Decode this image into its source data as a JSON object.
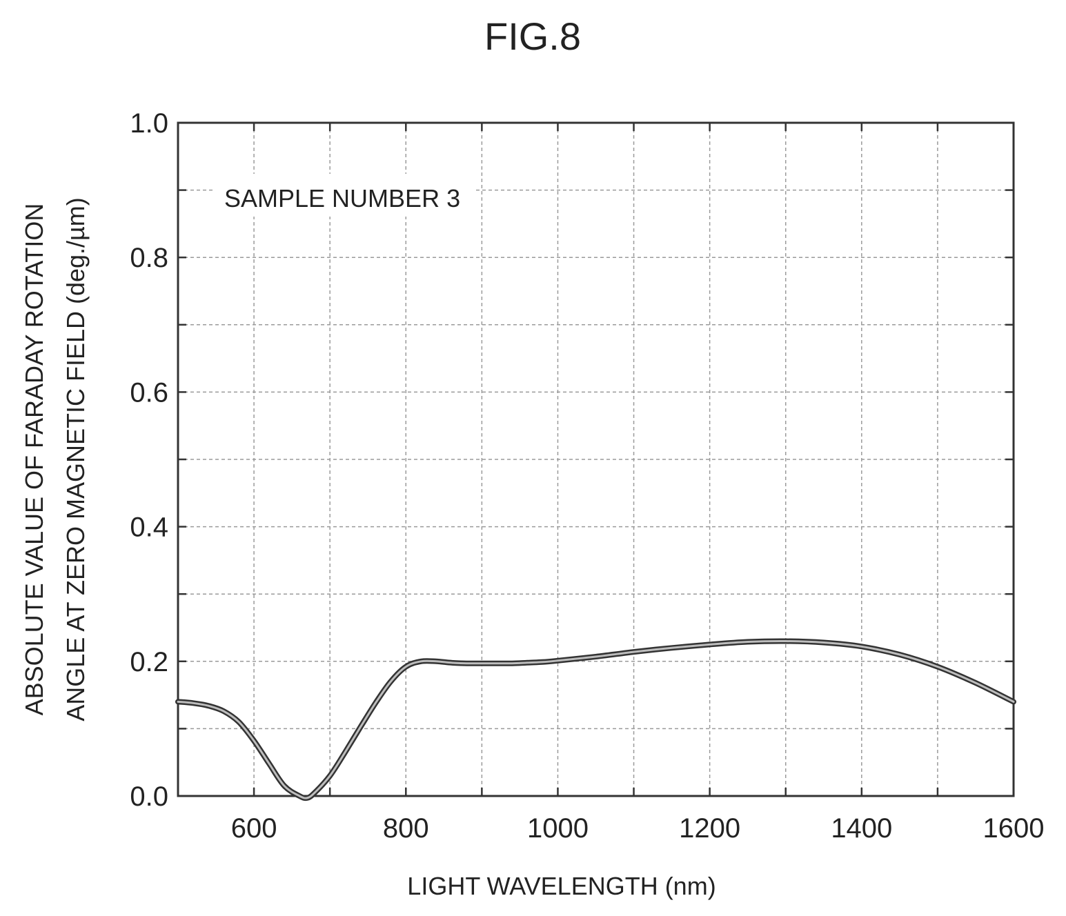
{
  "chart_data": {
    "type": "line",
    "title": "FIG.8",
    "xlabel": "LIGHT WAVELENGTH (nm)",
    "ylabel_lines": [
      "ABSOLUTE VALUE OF FARADAY ROTATION",
      "ANGLE AT ZERO MAGNETIC FIELD (deg./µm)"
    ],
    "annotation": "SAMPLE NUMBER 3",
    "xlim": [
      500,
      1600
    ],
    "ylim": [
      0.0,
      1.0
    ],
    "x_ticks": [
      600,
      800,
      1000,
      1200,
      1400,
      1600
    ],
    "x_tick_labels": [
      "600",
      "800",
      "1000",
      "1200",
      "1400",
      "1600"
    ],
    "x_minor_grid": [
      700,
      900,
      1100,
      1300,
      1500
    ],
    "y_ticks": [
      0.0,
      0.2,
      0.4,
      0.6,
      0.8,
      1.0
    ],
    "y_tick_labels": [
      "0.0",
      "0.2",
      "0.4",
      "0.6",
      "0.8",
      "1.0"
    ],
    "y_minor_grid": [
      0.1,
      0.3,
      0.5,
      0.7,
      0.9
    ],
    "grid": true,
    "series": [
      {
        "color": "#333333",
        "x": [
          500,
          520,
          540,
          560,
          580,
          600,
          620,
          640,
          660,
          670,
          680,
          700,
          720,
          740,
          760,
          780,
          800,
          820,
          840,
          860,
          880,
          900,
          920,
          940,
          960,
          980,
          1000,
          1050,
          1100,
          1150,
          1200,
          1250,
          1300,
          1350,
          1400,
          1450,
          1500,
          1550,
          1600
        ],
        "y": [
          0.14,
          0.138,
          0.134,
          0.126,
          0.11,
          0.082,
          0.048,
          0.015,
          0.0,
          -0.003,
          0.005,
          0.03,
          0.065,
          0.102,
          0.138,
          0.17,
          0.192,
          0.2,
          0.2,
          0.198,
          0.197,
          0.197,
          0.197,
          0.197,
          0.198,
          0.199,
          0.201,
          0.207,
          0.214,
          0.22,
          0.225,
          0.229,
          0.23,
          0.228,
          0.222,
          0.21,
          0.192,
          0.168,
          0.14
        ]
      }
    ]
  }
}
